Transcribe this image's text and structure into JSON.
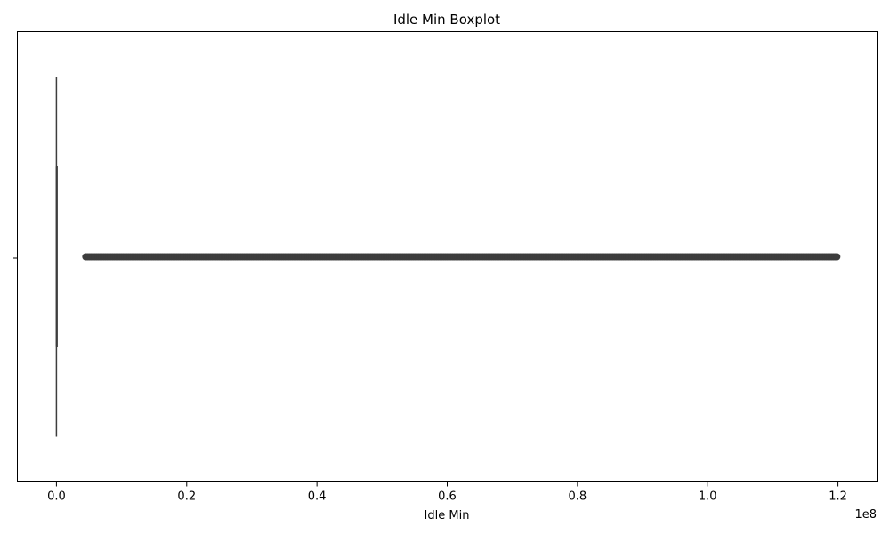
{
  "chart_data": {
    "type": "boxplot",
    "orientation": "horizontal",
    "title": "Idle Min Boxplot",
    "xlabel": "Idle Min",
    "ylabel": "",
    "offset_text": "1e8",
    "xlim": [
      -0.06,
      1.26
    ],
    "xticks": [
      0.0,
      0.2,
      0.4,
      0.6,
      0.8,
      1.0,
      1.2
    ],
    "xtick_labels": [
      "0.0",
      "0.2",
      "0.4",
      "0.6",
      "0.8",
      "1.0",
      "1.2"
    ],
    "scale_factor": 100000000,
    "box": {
      "whisker_low": 0.0,
      "q1": 0.0,
      "median": 0.0,
      "q3": 0.0,
      "whisker_high": 0.0
    },
    "outliers_range": [
      0.045,
      1.2
    ],
    "grid": false,
    "legend": "none",
    "colors": {
      "box_line": "#3d3d3d",
      "outlier": "#3d3d3d"
    }
  }
}
